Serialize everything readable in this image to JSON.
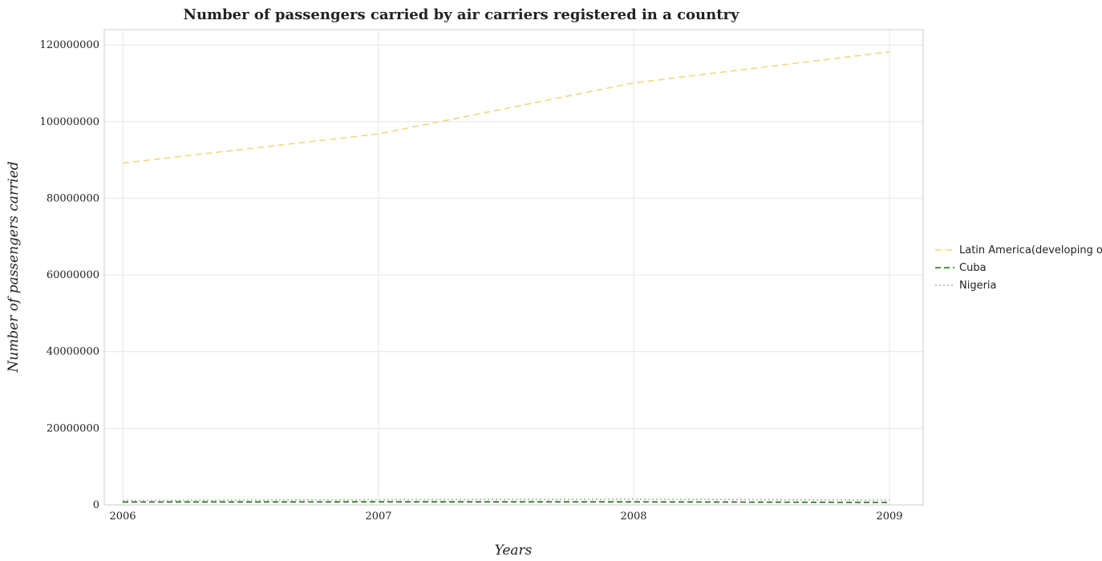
{
  "chart_data": {
    "type": "line",
    "title": "Number of passengers carried by air carriers registered in a country",
    "xlabel": "Years",
    "ylabel": "Number of passengers carried",
    "x": [
      "2006",
      "2007",
      "2008",
      "2009"
    ],
    "ylim": [
      0,
      124000000
    ],
    "yticks": [
      0,
      20000000,
      40000000,
      60000000,
      80000000,
      100000000,
      120000000
    ],
    "ytick_labels": [
      "0",
      "20000000",
      "40000000",
      "60000000",
      "80000000",
      "100000000",
      "120000000"
    ],
    "grid": true,
    "legend_position": "right",
    "series": [
      {
        "name": "Latin America(developing only)",
        "values": [
          89200000,
          96800000,
          110100000,
          118200000
        ],
        "color": "#f3d77a",
        "dash": "8,5"
      },
      {
        "name": "Cuba",
        "values": [
          750000,
          800000,
          800000,
          650000
        ],
        "color": "#1e6b12",
        "dash": "7,4"
      },
      {
        "name": "Nigeria",
        "values": [
          1150000,
          1350000,
          1500000,
          1250000
        ],
        "color": "#b0b0b0",
        "dash": "2,3"
      }
    ]
  }
}
